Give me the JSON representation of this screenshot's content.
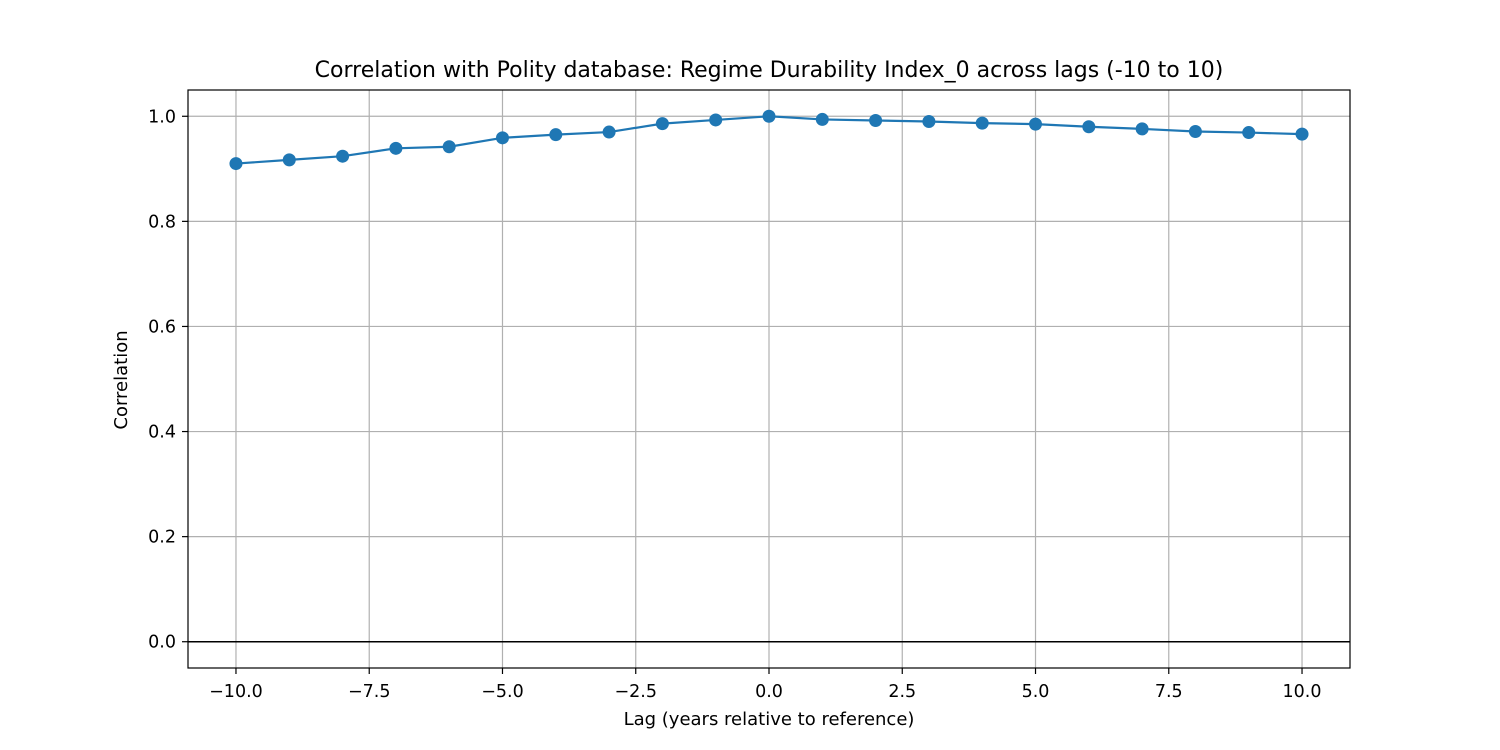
{
  "chart_data": {
    "type": "line",
    "title": "Correlation with Polity database: Regime Durability Index_0 across lags (-10 to 10)",
    "xlabel": "Lag (years relative to reference)",
    "ylabel": "Correlation",
    "xlim": [
      -10.9,
      10.9
    ],
    "ylim": [
      -0.05,
      1.05
    ],
    "x_ticks": [
      -10.0,
      -7.5,
      -5.0,
      -2.5,
      0.0,
      2.5,
      5.0,
      7.5,
      10.0
    ],
    "x_tick_labels": [
      "−10.0",
      "−7.5",
      "−5.0",
      "−2.5",
      "0.0",
      "2.5",
      "5.0",
      "7.5",
      "10.0"
    ],
    "y_ticks": [
      0.0,
      0.2,
      0.4,
      0.6,
      0.8,
      1.0
    ],
    "y_tick_labels": [
      "0.0",
      "0.2",
      "0.4",
      "0.6",
      "0.8",
      "1.0"
    ],
    "grid": true,
    "reference_line_y": 0.0,
    "series": [
      {
        "color": "#1f77b4",
        "marker": "circle",
        "x": [
          -10,
          -9,
          -8,
          -7,
          -6,
          -5,
          -4,
          -3,
          -2,
          -1,
          0,
          1,
          2,
          3,
          4,
          5,
          6,
          7,
          8,
          9,
          10
        ],
        "y": [
          0.91,
          0.917,
          0.924,
          0.939,
          0.942,
          0.959,
          0.965,
          0.97,
          0.986,
          0.993,
          1.0,
          0.994,
          0.992,
          0.99,
          0.987,
          0.985,
          0.98,
          0.976,
          0.971,
          0.969,
          0.966
        ]
      }
    ]
  }
}
